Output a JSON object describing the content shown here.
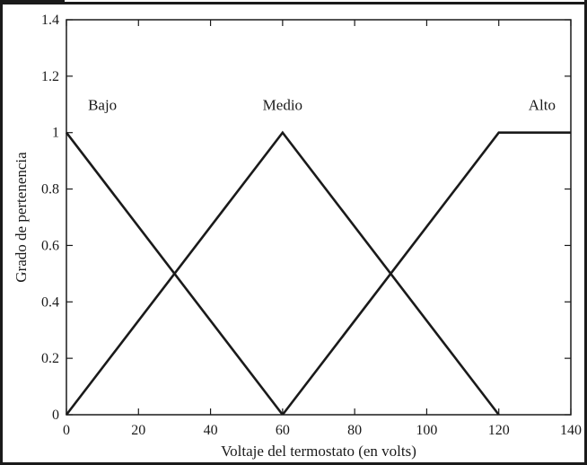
{
  "chart_data": {
    "type": "line",
    "title": "",
    "xlabel": "Voltaje del termostato (en volts)",
    "ylabel": "Grado de pertenencia",
    "xlim": [
      0,
      140
    ],
    "ylim": [
      0,
      1.4
    ],
    "xticks": [
      0,
      20,
      40,
      60,
      80,
      100,
      120,
      140
    ],
    "yticks": [
      0,
      0.2,
      0.4,
      0.6,
      0.8,
      1,
      1.2,
      1.4
    ],
    "xtick_labels": [
      "0",
      "20",
      "40",
      "60",
      "80",
      "100",
      "120",
      "140"
    ],
    "ytick_labels": [
      "0",
      "0.2",
      "0.4",
      "0.6",
      "0.8",
      "1",
      "1.2",
      "1.4"
    ],
    "grid": false,
    "series": [
      {
        "name": "Bajo",
        "x": [
          0,
          60
        ],
        "y": [
          1,
          0
        ]
      },
      {
        "name": "Medio",
        "x": [
          0,
          60,
          120
        ],
        "y": [
          0,
          1,
          0
        ]
      },
      {
        "name": "Alto",
        "x": [
          60,
          120,
          140
        ],
        "y": [
          0,
          1,
          1
        ]
      }
    ],
    "annotations": [
      {
        "text": "Bajo",
        "x": 10,
        "y": 1.08
      },
      {
        "text": "Medio",
        "x": 60,
        "y": 1.08
      },
      {
        "text": "Alto",
        "x": 132,
        "y": 1.08
      }
    ]
  }
}
